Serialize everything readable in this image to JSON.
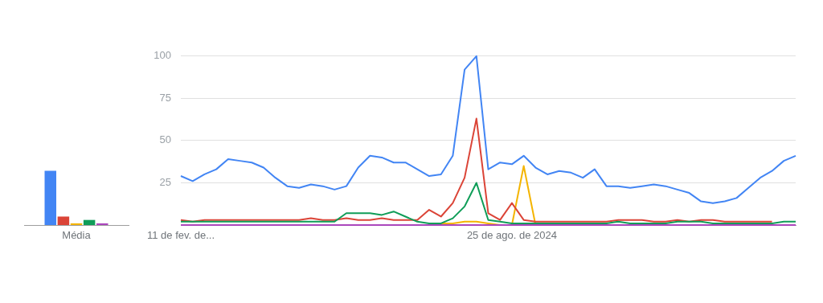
{
  "chart_data": [
    {
      "type": "bar",
      "categories": [
        "Média"
      ],
      "ylim": [
        0,
        100
      ],
      "tick_labels": "x",
      "series": [
        {
          "color": "#4285f4",
          "values": [
            32
          ]
        },
        {
          "color": "#db4437",
          "values": [
            5
          ]
        },
        {
          "color": "#f4b400",
          "values": [
            1
          ]
        },
        {
          "color": "#0f9d58",
          "values": [
            3
          ]
        },
        {
          "color": "#ab47bc",
          "values": [
            1
          ]
        }
      ]
    },
    {
      "type": "line",
      "marker": "none",
      "grid": "y",
      "ylim": [
        0,
        100
      ],
      "yticks": [
        {
          "value": 0,
          "label": null
        },
        25,
        50,
        75,
        100
      ],
      "categories": [
        "11 de fev. de...",
        null,
        null,
        null,
        null,
        null,
        null,
        null,
        null,
        null,
        null,
        null,
        null,
        null,
        null,
        null,
        null,
        null,
        null,
        null,
        null,
        null,
        null,
        null,
        null,
        null,
        null,
        null,
        "25 de ago. de 2024",
        null,
        null,
        null,
        null,
        null,
        null,
        null,
        null,
        null,
        null,
        null,
        null,
        null,
        null,
        null,
        null,
        null,
        null,
        null,
        null,
        null,
        null,
        null,
        null
      ],
      "series": [
        {
          "color": "#4285f4",
          "values": [
            29,
            26,
            30,
            33,
            39,
            38,
            37,
            34,
            28,
            23,
            22,
            24,
            23,
            21,
            23,
            34,
            41,
            40,
            37,
            37,
            33,
            29,
            30,
            41,
            92,
            100,
            33,
            37,
            36,
            41,
            34,
            30,
            32,
            31,
            28,
            33,
            23,
            23,
            22,
            23,
            24,
            23,
            21,
            19,
            14,
            13,
            14,
            16,
            22,
            28,
            32,
            38,
            41
          ]
        },
        {
          "color": "#db4437",
          "values": [
            3,
            2,
            3,
            3,
            3,
            3,
            3,
            3,
            3,
            3,
            3,
            4,
            3,
            3,
            4,
            3,
            3,
            4,
            3,
            3,
            3,
            9,
            5,
            13,
            28,
            63,
            7,
            3,
            13,
            3,
            2,
            2,
            2,
            2,
            2,
            2,
            2,
            3,
            3,
            3,
            2,
            2,
            3,
            2,
            3,
            3,
            2,
            2,
            2,
            2,
            2,
            null,
            null
          ]
        },
        {
          "color": "#f4b400",
          "values": [
            null,
            null,
            null,
            null,
            null,
            null,
            null,
            null,
            null,
            null,
            null,
            null,
            null,
            null,
            null,
            null,
            null,
            null,
            null,
            null,
            null,
            null,
            1,
            1,
            2,
            2,
            1,
            0,
            0,
            35,
            0,
            null,
            null,
            null,
            null,
            null,
            null,
            null,
            null,
            null,
            null,
            null,
            null,
            null,
            null,
            null,
            null,
            null,
            null,
            null,
            null,
            null,
            null
          ]
        },
        {
          "color": "#0f9d58",
          "values": [
            2,
            2,
            2,
            2,
            2,
            2,
            2,
            2,
            2,
            2,
            2,
            2,
            2,
            2,
            7,
            7,
            7,
            6,
            8,
            5,
            2,
            1,
            1,
            4,
            11,
            25,
            3,
            2,
            1,
            1,
            1,
            1,
            1,
            1,
            1,
            1,
            1,
            2,
            1,
            1,
            1,
            1,
            2,
            2,
            2,
            1,
            1,
            1,
            1,
            1,
            1,
            2,
            2
          ]
        },
        {
          "color": "#ab47bc",
          "values": [
            0,
            0,
            0,
            0,
            0,
            0,
            0,
            0,
            0,
            0,
            0,
            0,
            0,
            0,
            0,
            0,
            0,
            0,
            0,
            0,
            0,
            0,
            0,
            0,
            0,
            0,
            0,
            0,
            0,
            0,
            0,
            0,
            0,
            0,
            0,
            0,
            0,
            0,
            0,
            0,
            0,
            0,
            0,
            0,
            0,
            0,
            0,
            0,
            0,
            0,
            0,
            0,
            0
          ]
        }
      ]
    }
  ]
}
